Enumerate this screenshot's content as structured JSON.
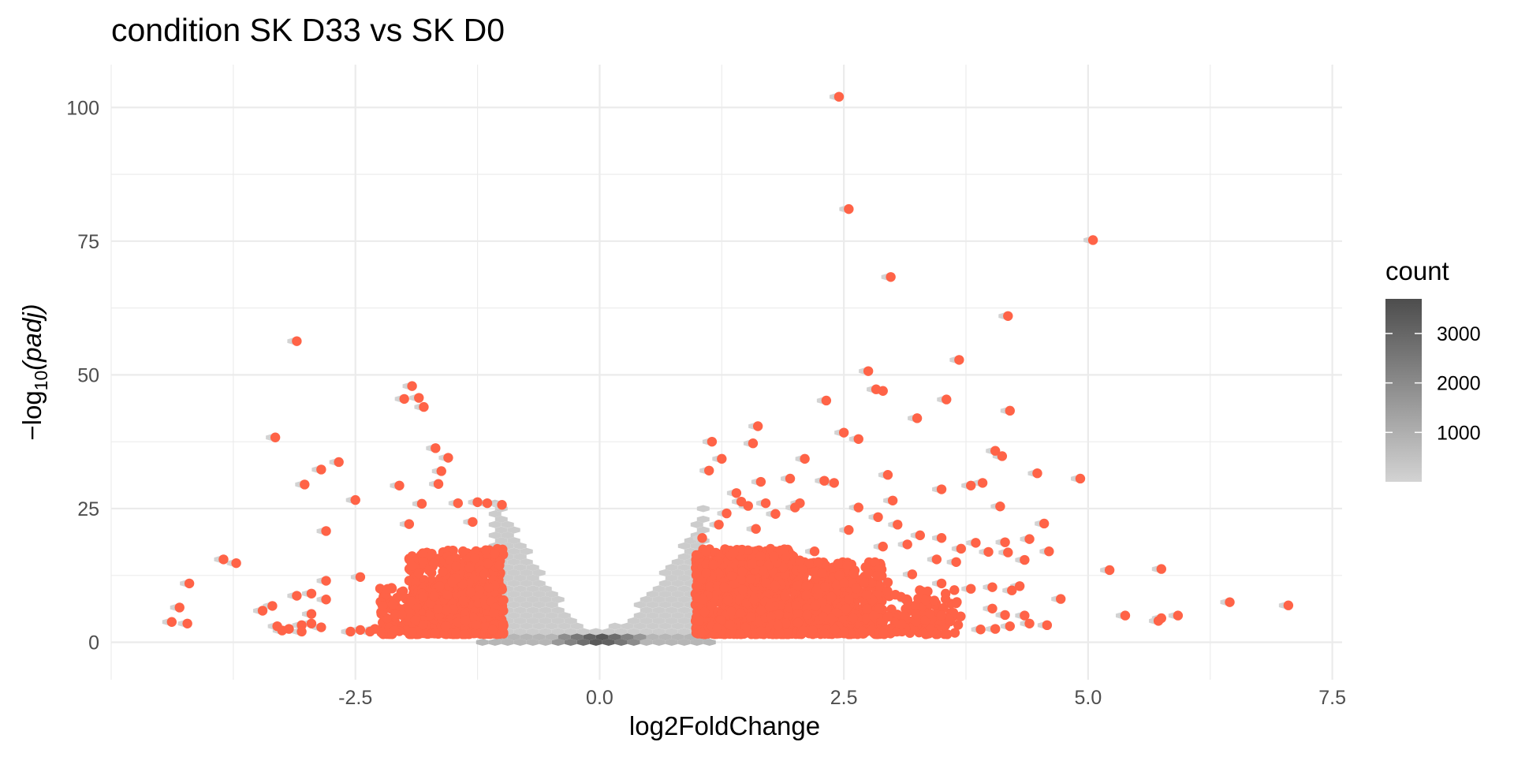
{
  "chart_data": {
    "type": "scatter",
    "title": "condition SK D33 vs SK D0",
    "xlabel": "log2FoldChange",
    "ylabel_prefix": "−log",
    "ylabel_subscript": "10",
    "ylabel_italic": "(padj)",
    "xlim": [
      -5.0,
      7.6
    ],
    "ylim": [
      -7,
      108
    ],
    "x_ticks": [
      -2.5,
      0.0,
      2.5,
      5.0,
      7.5
    ],
    "x_tick_labels": [
      "-2.5",
      "0.0",
      "2.5",
      "5.0",
      "7.5"
    ],
    "y_ticks": [
      0,
      25,
      50,
      75,
      100
    ],
    "y_tick_labels": [
      "0",
      "25",
      "50",
      "75",
      "100"
    ],
    "grid": true,
    "background_layer": {
      "kind": "hexbin",
      "description_label": "count",
      "legend_title": "count",
      "legend_ticks": [
        1000,
        2000,
        3000
      ],
      "legend_tick_labels": [
        "1000",
        "2000",
        "3000"
      ],
      "count_range": [
        1,
        3700
      ],
      "color_low": "#d3d3d3",
      "color_high": "#4d4d4d"
    },
    "highlight_color": "#ff6347",
    "highlight_points": [
      [
        2.45,
        102.0
      ],
      [
        2.55,
        81.0
      ],
      [
        5.05,
        75.2
      ],
      [
        2.98,
        68.3
      ],
      [
        4.18,
        61.0
      ],
      [
        -3.1,
        56.3
      ],
      [
        3.68,
        52.8
      ],
      [
        2.75,
        50.7
      ],
      [
        2.83,
        47.3
      ],
      [
        2.9,
        47.0
      ],
      [
        -1.92,
        47.9
      ],
      [
        -1.85,
        45.7
      ],
      [
        -2.0,
        45.5
      ],
      [
        -1.8,
        44.0
      ],
      [
        3.55,
        45.4
      ],
      [
        2.32,
        45.2
      ],
      [
        4.2,
        43.3
      ],
      [
        3.25,
        41.9
      ],
      [
        1.62,
        40.4
      ],
      [
        2.5,
        39.2
      ],
      [
        2.65,
        38.0
      ],
      [
        -3.32,
        38.3
      ],
      [
        1.15,
        37.5
      ],
      [
        1.57,
        37.2
      ],
      [
        4.05,
        35.8
      ],
      [
        4.12,
        34.8
      ],
      [
        -1.68,
        36.3
      ],
      [
        -1.55,
        34.5
      ],
      [
        1.25,
        34.3
      ],
      [
        2.1,
        34.3
      ],
      [
        -2.67,
        33.7
      ],
      [
        -2.85,
        32.3
      ],
      [
        1.12,
        32.1
      ],
      [
        1.65,
        30.0
      ],
      [
        -1.62,
        32.0
      ],
      [
        4.48,
        31.6
      ],
      [
        2.95,
        31.3
      ],
      [
        1.95,
        30.6
      ],
      [
        2.3,
        30.2
      ],
      [
        2.4,
        29.8
      ],
      [
        4.92,
        30.6
      ],
      [
        -3.02,
        29.5
      ],
      [
        -2.05,
        29.3
      ],
      [
        -1.65,
        29.6
      ],
      [
        3.8,
        29.3
      ],
      [
        3.92,
        29.8
      ],
      [
        3.5,
        28.6
      ],
      [
        1.4,
        27.9
      ],
      [
        -2.5,
        26.6
      ],
      [
        1.45,
        26.3
      ],
      [
        1.7,
        26.0
      ],
      [
        2.05,
        26.0
      ],
      [
        2.0,
        25.2
      ],
      [
        2.65,
        25.2
      ],
      [
        3.0,
        26.5
      ],
      [
        4.1,
        25.4
      ],
      [
        1.52,
        25.5
      ],
      [
        -1.82,
        25.9
      ],
      [
        -1.45,
        26.0
      ],
      [
        -1.25,
        26.2
      ],
      [
        -1.15,
        26.0
      ],
      [
        -1.0,
        25.7
      ],
      [
        1.3,
        24.1
      ],
      [
        1.8,
        24.0
      ],
      [
        2.85,
        23.4
      ],
      [
        1.22,
        22.0
      ],
      [
        -1.95,
        22.1
      ],
      [
        -1.3,
        22.5
      ],
      [
        1.6,
        21.2
      ],
      [
        2.55,
        21.0
      ],
      [
        3.05,
        22.0
      ],
      [
        -2.8,
        20.8
      ],
      [
        4.55,
        22.2
      ],
      [
        4.4,
        19.3
      ],
      [
        3.28,
        20.0
      ],
      [
        3.5,
        19.5
      ],
      [
        3.85,
        18.6
      ],
      [
        4.15,
        18.7
      ],
      [
        3.15,
        18.3
      ],
      [
        2.9,
        17.9
      ],
      [
        4.6,
        17.0
      ],
      [
        3.7,
        17.5
      ],
      [
        3.98,
        16.9
      ],
      [
        4.18,
        16.8
      ],
      [
        1.05,
        19.5
      ],
      [
        2.2,
        17.0
      ],
      [
        -3.85,
        15.5
      ],
      [
        -3.72,
        14.8
      ],
      [
        4.35,
        15.4
      ],
      [
        3.45,
        15.5
      ],
      [
        3.65,
        15.0
      ],
      [
        2.05,
        15.3
      ],
      [
        5.22,
        13.5
      ],
      [
        5.75,
        13.7
      ],
      [
        -2.45,
        12.2
      ],
      [
        -2.8,
        11.5
      ],
      [
        3.2,
        12.7
      ],
      [
        2.95,
        11.2
      ],
      [
        3.5,
        11.0
      ],
      [
        4.02,
        10.3
      ],
      [
        -4.2,
        11.0
      ],
      [
        4.3,
        10.5
      ],
      [
        3.8,
        10.0
      ],
      [
        4.22,
        9.7
      ],
      [
        -2.95,
        9.1
      ],
      [
        -3.1,
        8.7
      ],
      [
        -2.8,
        8.0
      ],
      [
        4.72,
        8.1
      ],
      [
        3.15,
        7.9
      ],
      [
        6.45,
        7.5
      ],
      [
        -4.3,
        6.5
      ],
      [
        -3.35,
        6.8
      ],
      [
        -3.45,
        5.9
      ],
      [
        -2.95,
        5.3
      ],
      [
        7.05,
        6.9
      ],
      [
        4.02,
        6.3
      ],
      [
        4.35,
        5.0
      ],
      [
        4.15,
        5.1
      ],
      [
        3.5,
        5.0
      ],
      [
        5.38,
        5.0
      ],
      [
        5.75,
        4.5
      ],
      [
        5.92,
        5.0
      ],
      [
        -4.38,
        3.8
      ],
      [
        -4.22,
        3.5
      ],
      [
        -3.3,
        3.0
      ],
      [
        -3.18,
        2.5
      ],
      [
        -3.05,
        3.2
      ],
      [
        -2.95,
        3.5
      ],
      [
        -2.85,
        2.8
      ],
      [
        -3.25,
        2.2
      ],
      [
        -3.05,
        2.0
      ],
      [
        -2.55,
        2.0
      ],
      [
        -2.45,
        2.3
      ],
      [
        -2.3,
        2.5
      ],
      [
        -2.35,
        2.0
      ],
      [
        -2.1,
        2.2
      ],
      [
        4.4,
        3.5
      ],
      [
        4.58,
        3.2
      ],
      [
        4.2,
        3.0
      ],
      [
        5.72,
        4.0
      ],
      [
        3.9,
        2.4
      ],
      [
        4.05,
        2.5
      ]
    ],
    "highlight_regions": [
      {
        "x_from": -1.95,
        "x_to": -0.98,
        "y_from": 1.5,
        "y_to": 17.5,
        "n": 650
      },
      {
        "x_from": -2.25,
        "x_to": -1.8,
        "y_from": 1.5,
        "y_to": 10.5,
        "n": 120
      },
      {
        "x_from": 0.98,
        "x_to": 2.0,
        "y_from": 1.5,
        "y_to": 17.5,
        "n": 1050
      },
      {
        "x_from": 2.0,
        "x_to": 2.9,
        "y_from": 1.5,
        "y_to": 15.0,
        "n": 500
      },
      {
        "x_from": 2.9,
        "x_to": 3.7,
        "y_from": 1.5,
        "y_to": 10.0,
        "n": 120
      }
    ]
  }
}
